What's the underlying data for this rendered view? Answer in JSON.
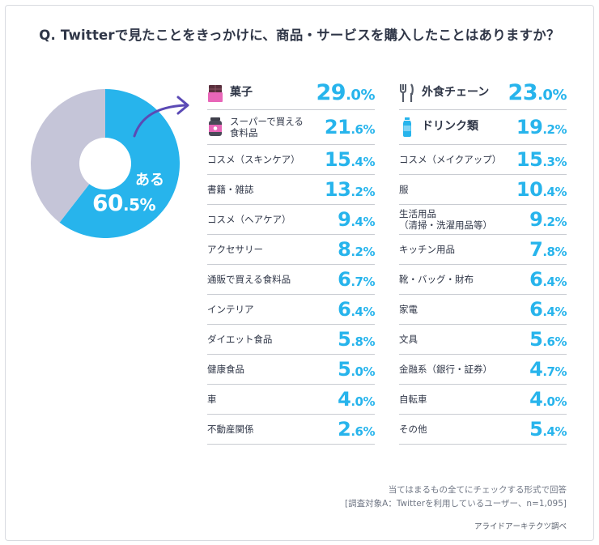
{
  "title": "Q. Twitterで見たことをきっかけに、商品・サービスを購入したことはありますか？",
  "pie": {
    "label": "ある",
    "value_int": "60",
    "value_dec": ".5%"
  },
  "chart_data": {
    "type": "pie",
    "title": "Q. Twitterで見たことをきっかけに、商品・サービスを購入したことはありますか？",
    "slices": [
      {
        "label": "ある",
        "value": 60.5,
        "color": "#27b4ec"
      },
      {
        "label": "",
        "value": 39.5,
        "color": "#c5c5d8"
      }
    ],
    "categories_left": [
      {
        "label": "菓子",
        "int": "29",
        "dec": ".0%",
        "value": 29.0
      },
      {
        "label": "スーパーで買える食料品",
        "int": "21",
        "dec": ".6%",
        "value": 21.6
      },
      {
        "label": "コスメ（スキンケア）",
        "int": "15",
        "dec": ".4%",
        "value": 15.4
      },
      {
        "label": "書籍・雑誌",
        "int": "13",
        "dec": ".2%",
        "value": 13.2
      },
      {
        "label": "コスメ（ヘアケア）",
        "int": "9",
        "dec": ".4%",
        "value": 9.4
      },
      {
        "label": "アクセサリー",
        "int": "8",
        "dec": ".2%",
        "value": 8.2
      },
      {
        "label": "通販で買える食料品",
        "int": "6",
        "dec": ".7%",
        "value": 6.7
      },
      {
        "label": "インテリア",
        "int": "6",
        "dec": ".4%",
        "value": 6.4
      },
      {
        "label": "ダイエット食品",
        "int": "5",
        "dec": ".8%",
        "value": 5.8
      },
      {
        "label": "健康食品",
        "int": "5",
        "dec": ".0%",
        "value": 5.0
      },
      {
        "label": "車",
        "int": "4",
        "dec": ".0%",
        "value": 4.0
      },
      {
        "label": "不動産関係",
        "int": "2",
        "dec": ".6%",
        "value": 2.6
      }
    ],
    "categories_right": [
      {
        "label": "外食チェーン",
        "int": "23",
        "dec": ".0%",
        "value": 23.0
      },
      {
        "label": "ドリンク類",
        "int": "19",
        "dec": ".2%",
        "value": 19.2
      },
      {
        "label": "コスメ（メイクアップ）",
        "int": "15",
        "dec": ".3%",
        "value": 15.3
      },
      {
        "label": "服",
        "int": "10",
        "dec": ".4%",
        "value": 10.4
      },
      {
        "label": "生活用品（清掃・洗濯用品等）",
        "int": "9",
        "dec": ".2%",
        "value": 9.2
      },
      {
        "label": "キッチン用品",
        "int": "7",
        "dec": ".8%",
        "value": 7.8
      },
      {
        "label": "靴・バッグ・財布",
        "int": "6",
        "dec": ".4%",
        "value": 6.4
      },
      {
        "label": "家電",
        "int": "6",
        "dec": ".4%",
        "value": 6.4
      },
      {
        "label": "文具",
        "int": "5",
        "dec": ".6%",
        "value": 5.6
      },
      {
        "label": "金融系（銀行・証券）",
        "int": "4",
        "dec": ".7%",
        "value": 4.7
      },
      {
        "label": "自転車",
        "int": "4",
        "dec": ".0%",
        "value": 4.0
      },
      {
        "label": "その他",
        "int": "5",
        "dec": ".4%",
        "value": 5.4
      }
    ]
  },
  "rows": {
    "left": [
      {
        "l1": "菓子",
        "l2": "",
        "int": "29",
        "dec": ".0%"
      },
      {
        "l1": "スーパーで買える",
        "l2": "食料品",
        "int": "21",
        "dec": ".6%"
      },
      {
        "l1": "コスメ（スキンケア）",
        "l2": "",
        "int": "15",
        "dec": ".4%"
      },
      {
        "l1": "書籍・雑誌",
        "l2": "",
        "int": "13",
        "dec": ".2%"
      },
      {
        "l1": "コスメ（ヘアケア）",
        "l2": "",
        "int": "9",
        "dec": ".4%"
      },
      {
        "l1": "アクセサリー",
        "l2": "",
        "int": "8",
        "dec": ".2%"
      },
      {
        "l1": "通販で買える食料品",
        "l2": "",
        "int": "6",
        "dec": ".7%"
      },
      {
        "l1": "インテリア",
        "l2": "",
        "int": "6",
        "dec": ".4%"
      },
      {
        "l1": "ダイエット食品",
        "l2": "",
        "int": "5",
        "dec": ".8%"
      },
      {
        "l1": "健康食品",
        "l2": "",
        "int": "5",
        "dec": ".0%"
      },
      {
        "l1": "車",
        "l2": "",
        "int": "4",
        "dec": ".0%"
      },
      {
        "l1": "不動産関係",
        "l2": "",
        "int": "2",
        "dec": ".6%"
      }
    ],
    "right": [
      {
        "l1": "外食チェーン",
        "l2": "",
        "int": "23",
        "dec": ".0%"
      },
      {
        "l1": "ドリンク類",
        "l2": "",
        "int": "19",
        "dec": ".2%"
      },
      {
        "l1": "コスメ（メイクアップ）",
        "l2": "",
        "int": "15",
        "dec": ".3%"
      },
      {
        "l1": "服",
        "l2": "",
        "int": "10",
        "dec": ".4%"
      },
      {
        "l1": "生活用品",
        "l2": "（清掃・洗濯用品等）",
        "int": "9",
        "dec": ".2%"
      },
      {
        "l1": "キッチン用品",
        "l2": "",
        "int": "7",
        "dec": ".8%"
      },
      {
        "l1": "靴・バッグ・財布",
        "l2": "",
        "int": "6",
        "dec": ".4%"
      },
      {
        "l1": "家電",
        "l2": "",
        "int": "6",
        "dec": ".4%"
      },
      {
        "l1": "文具",
        "l2": "",
        "int": "5",
        "dec": ".6%"
      },
      {
        "l1": "金融系（銀行・証券）",
        "l2": "",
        "int": "4",
        "dec": ".7%"
      },
      {
        "l1": "自転車",
        "l2": "",
        "int": "4",
        "dec": ".0%"
      },
      {
        "l1": "その他",
        "l2": "",
        "int": "5",
        "dec": ".4%"
      }
    ]
  },
  "icons": [
    "chocolate-icon",
    "jar-icon",
    "fork-knife-icon",
    "bottle-icon"
  ],
  "colors": {
    "accent": "#27b4ec",
    "pie_rest": "#c5c5d8",
    "arrow": "#5b4ab5",
    "text": "#2f3647"
  },
  "footer": {
    "note1": "当てはまるもの全てにチェックする形式で回答",
    "note2": "[調査対象A：Twitterを利用しているユーザー、n=1,095]",
    "source": "アライドアーキテクツ調べ"
  }
}
